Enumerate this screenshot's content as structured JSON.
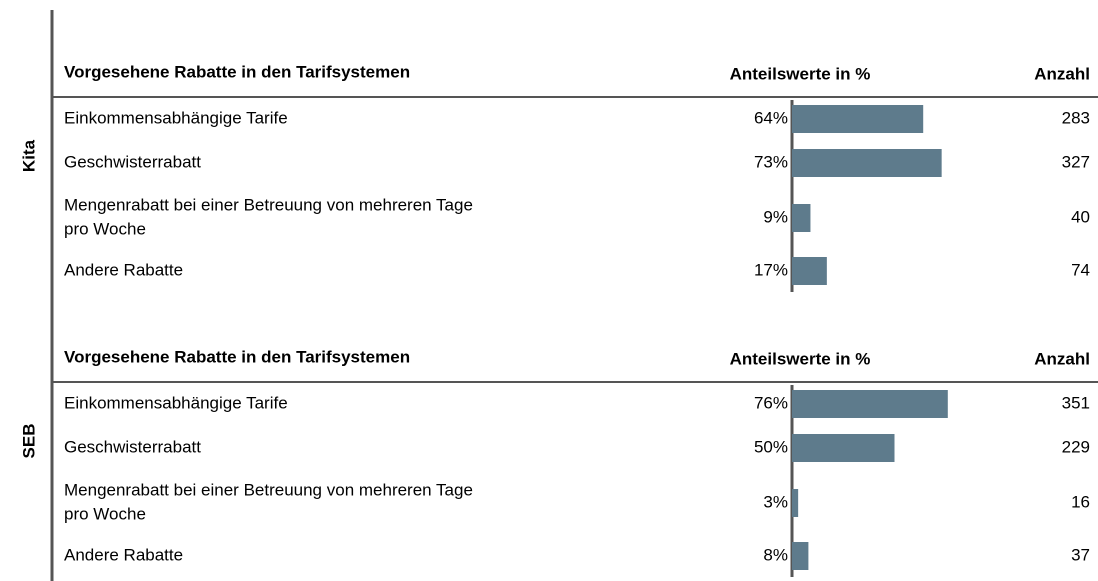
{
  "panels": [
    {
      "group": "Kita",
      "header": {
        "category": "Vorgesehene Rabatte in den Tarifsystemen",
        "share": "Anteilswerte in %",
        "count": "Anzahl"
      },
      "rows": [
        {
          "lines": [
            "Einkommensabhängige Tarife"
          ],
          "share": 64,
          "share_label": "64%",
          "count": 283
        },
        {
          "lines": [
            "Geschwisterrabatt"
          ],
          "share": 73,
          "share_label": "73%",
          "count": 327
        },
        {
          "lines": [
            "Mengenrabatt bei einer Betreuung von mehreren Tage",
            "pro Woche"
          ],
          "share": 9,
          "share_label": "9%",
          "count": 40
        },
        {
          "lines": [
            "Andere Rabatte"
          ],
          "share": 17,
          "share_label": "17%",
          "count": 74
        }
      ]
    },
    {
      "group": "SEB",
      "header": {
        "category": "Vorgesehene Rabatte in den Tarifsystemen",
        "share": "Anteilswerte in %",
        "count": "Anzahl"
      },
      "rows": [
        {
          "lines": [
            "Einkommensabhängige Tarife"
          ],
          "share": 76,
          "share_label": "76%",
          "count": 351
        },
        {
          "lines": [
            "Geschwisterrabatt"
          ],
          "share": 50,
          "share_label": "50%",
          "count": 229
        },
        {
          "lines": [
            "Mengenrabatt bei einer Betreuung von mehreren Tage",
            "pro Woche"
          ],
          "share": 3,
          "share_label": "3%",
          "count": 16
        },
        {
          "lines": [
            "Andere Rabatte"
          ],
          "share": 8,
          "share_label": "8%",
          "count": 37
        }
      ]
    }
  ]
}
